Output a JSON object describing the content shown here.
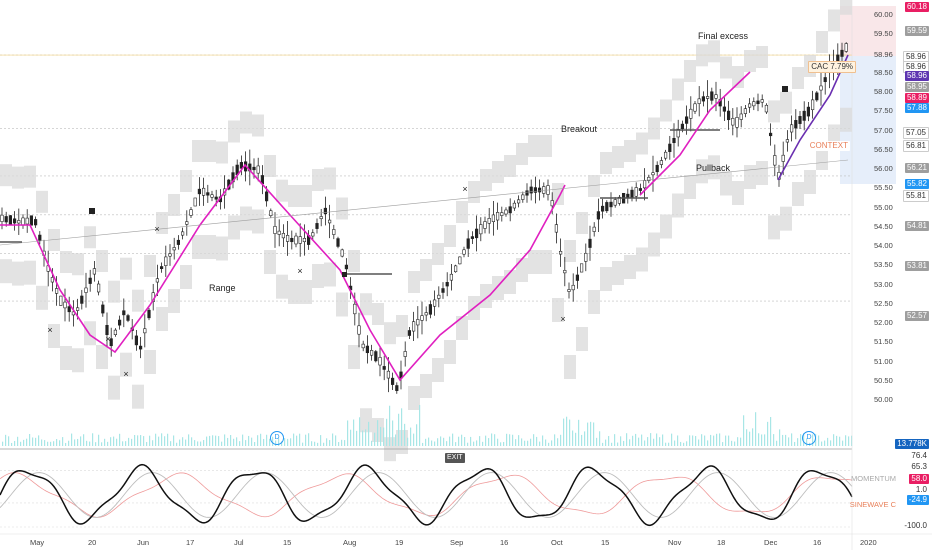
{
  "annotations": {
    "range": "Range",
    "breakout": "Breakout",
    "pullback": "Pullback",
    "final_excess": "Final excess"
  },
  "price_axis": [
    "60.00",
    "59.50",
    "58.96",
    "58.50",
    "58.00",
    "57.50",
    "57.00",
    "56.50",
    "56.00",
    "55.50",
    "55.00",
    "54.50",
    "54.00",
    "53.50",
    "53.00",
    "52.50",
    "52.00",
    "51.50",
    "51.00",
    "50.50",
    "50.00"
  ],
  "price_tags": [
    {
      "text": "60.18",
      "bg": "#e91e63",
      "fg": "#ffffff"
    },
    {
      "text": "59.59",
      "bg": "#9e9e9e",
      "fg": "#ffffff"
    },
    {
      "text": "58.96",
      "bg": "#ffffff",
      "fg": "#333333"
    },
    {
      "text": "58.96",
      "bg": "#ffffff",
      "fg": "#333333"
    },
    {
      "text": "58.96",
      "bg": "#5e35b1",
      "fg": "#ffffff"
    },
    {
      "text": "58.95",
      "bg": "#9e9e9e",
      "fg": "#ffffff"
    },
    {
      "text": "58.89",
      "bg": "#e91e63",
      "fg": "#ffffff"
    },
    {
      "text": "57.88",
      "bg": "#2196f3",
      "fg": "#ffffff"
    },
    {
      "text": "57.05",
      "bg": "#ffffff",
      "fg": "#333333"
    },
    {
      "text": "56.81",
      "bg": "#ffffff",
      "fg": "#333333"
    },
    {
      "text": "56.21",
      "bg": "#9e9e9e",
      "fg": "#ffffff"
    },
    {
      "text": "55.82",
      "bg": "#2196f3",
      "fg": "#ffffff"
    },
    {
      "text": "55.81",
      "bg": "#ffffff",
      "fg": "#333333"
    },
    {
      "text": "54.81",
      "bg": "#9e9e9e",
      "fg": "#ffffff"
    },
    {
      "text": "53.81",
      "bg": "#9e9e9e",
      "fg": "#ffffff"
    },
    {
      "text": "52.57",
      "bg": "#9e9e9e",
      "fg": "#ffffff"
    },
    {
      "text": "13.778K",
      "bg": "#1565c0",
      "fg": "#ffffff"
    }
  ],
  "cac_label": "CAC 7.79%",
  "context_label": "CONTEXT",
  "indicators": {
    "momentum_label": "MOMENTUM",
    "sinewave_label": "SINEWAVE C",
    "values": [
      {
        "text": "76.4",
        "bg": "#ffffff",
        "fg": "#333333"
      },
      {
        "text": "65.3",
        "bg": "#ffffff",
        "fg": "#333333"
      },
      {
        "text": "58.0",
        "bg": "#e91e63",
        "fg": "#ffffff"
      },
      {
        "text": "1.0",
        "bg": "#ffffff",
        "fg": "#333333"
      },
      {
        "text": "-24.9",
        "bg": "#2196f3",
        "fg": "#ffffff"
      },
      {
        "text": "-100.0",
        "bg": "#ffffff",
        "fg": "#333333"
      }
    ],
    "tags": {
      "exit": "EXIT",
      "d1": "D",
      "d2": "D"
    }
  },
  "x_axis": [
    "May",
    "20",
    "Jun",
    "17",
    "Jul",
    "15",
    "Aug",
    "19",
    "Sep",
    "16",
    "Oct",
    "15",
    "Nov",
    "18",
    "Dec",
    "16",
    "2020"
  ],
  "colors": {
    "magenta": "#e020c0",
    "band": "#d8d8d8",
    "purple": "#6a2fb0"
  }
}
